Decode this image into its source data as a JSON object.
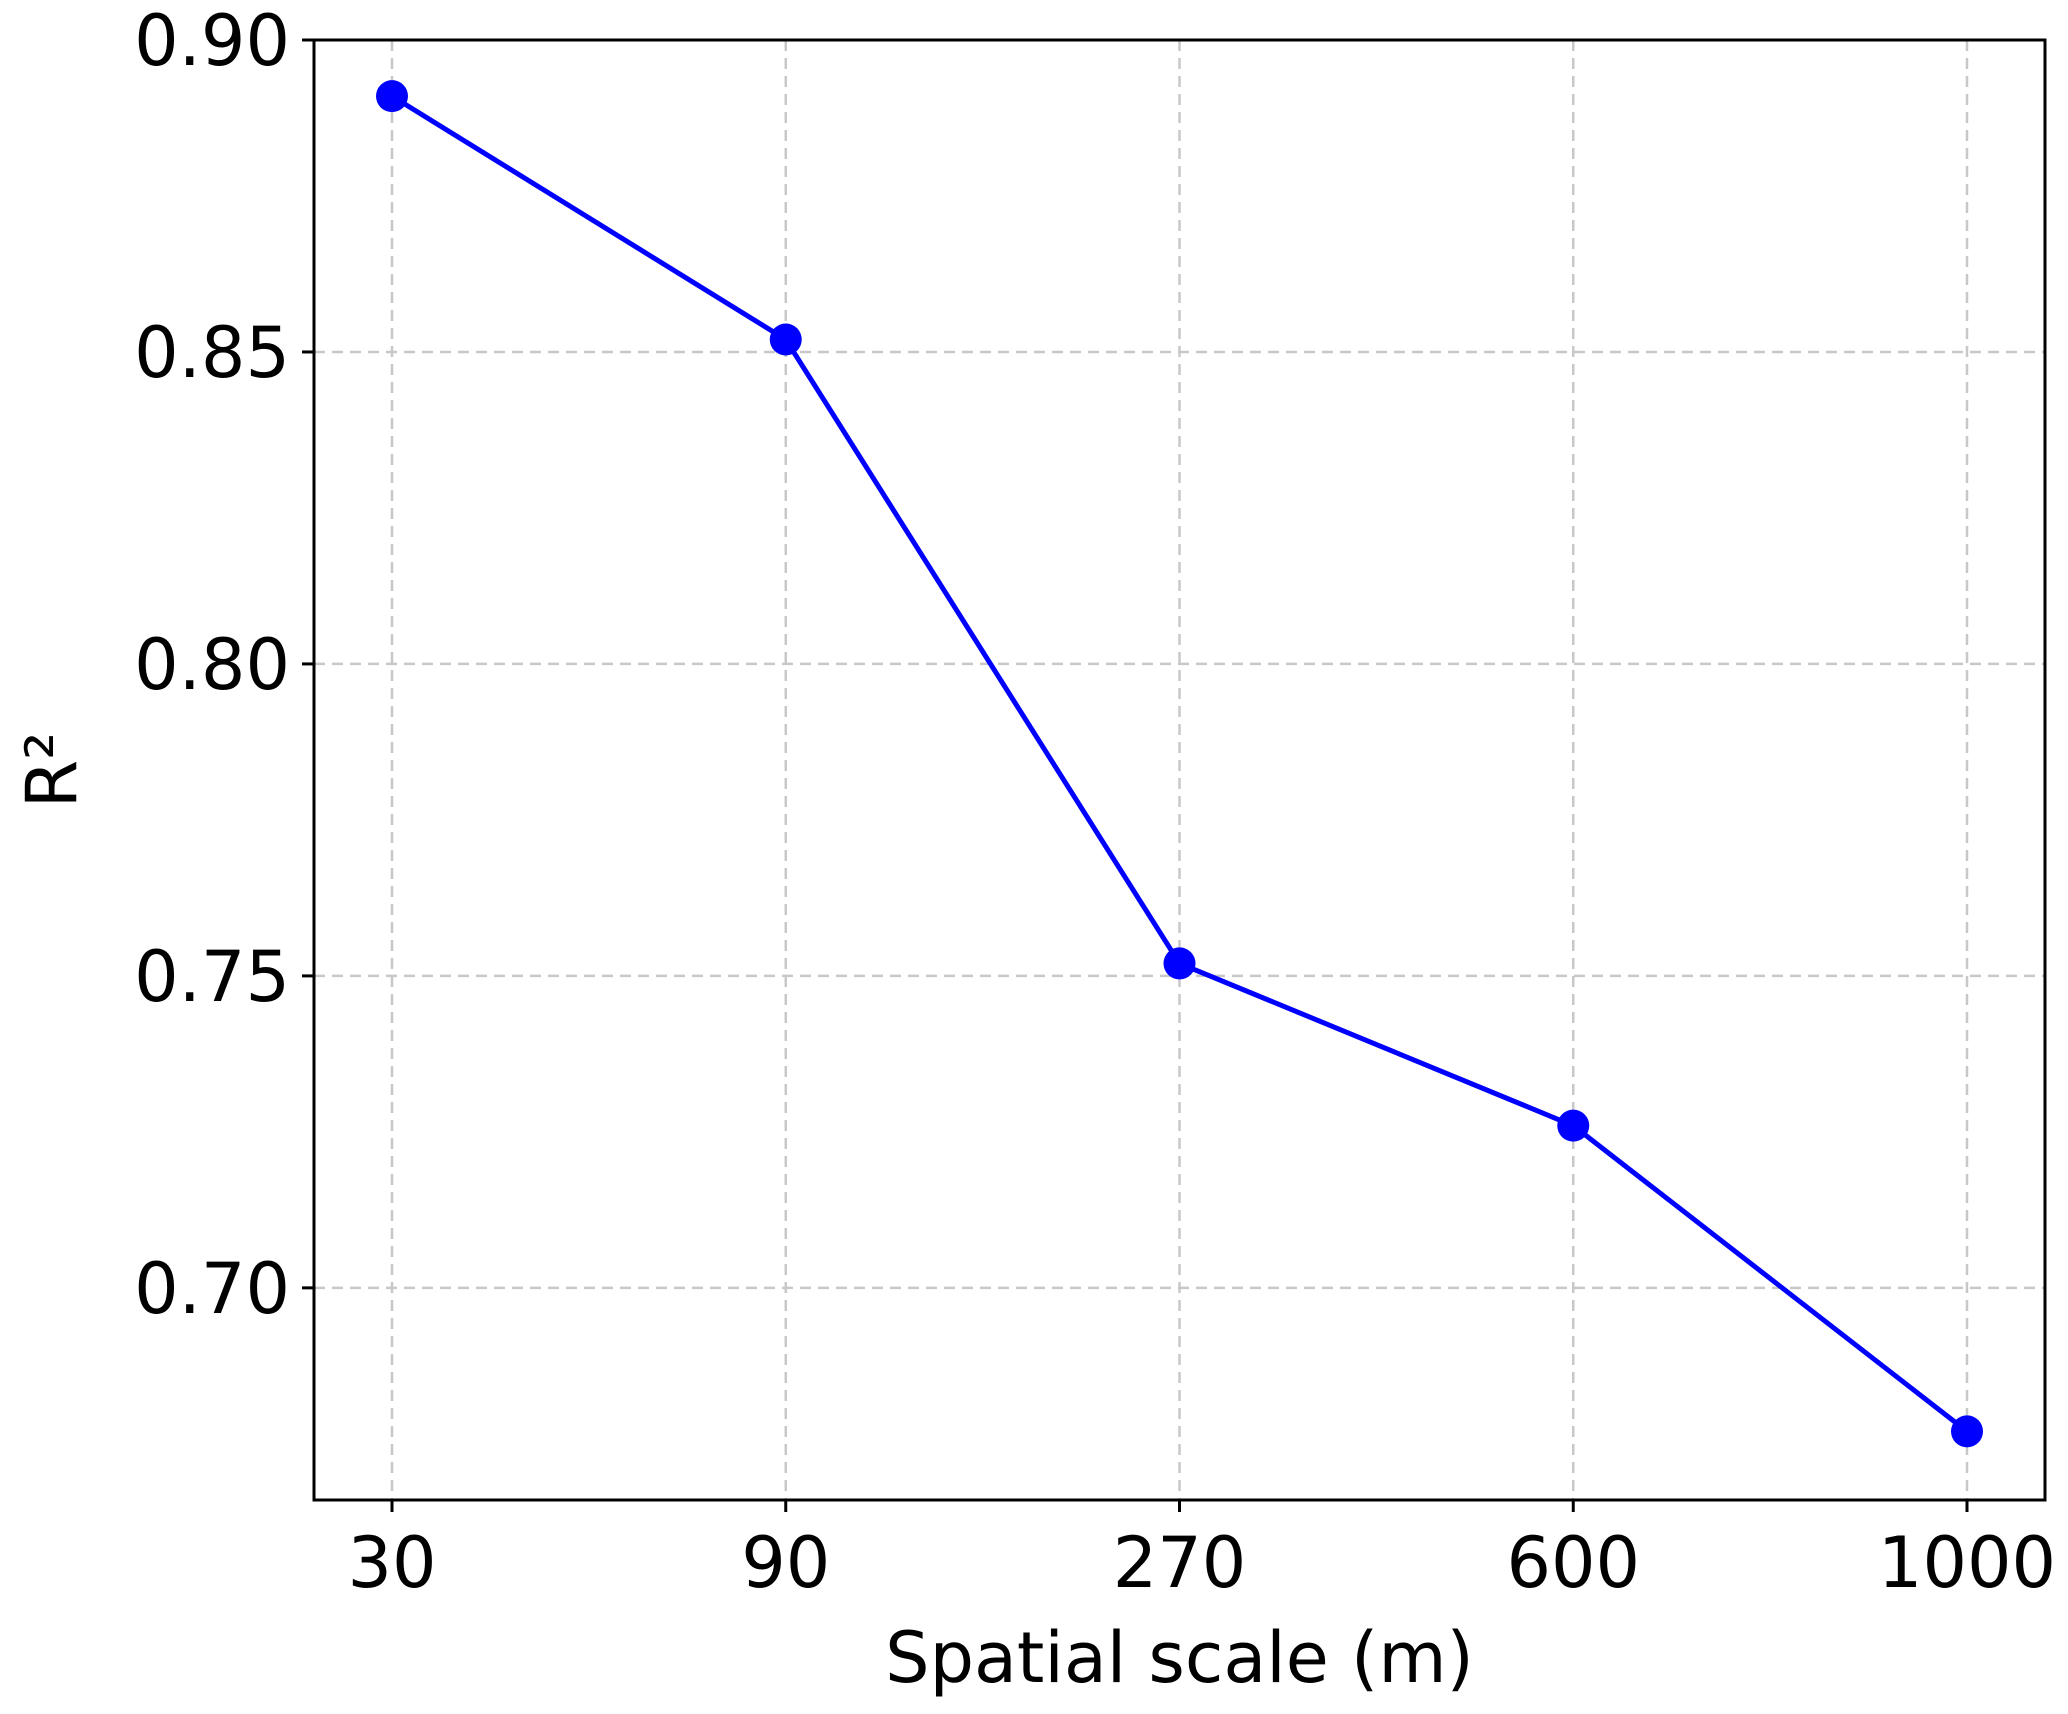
{
  "chart_data": {
    "type": "line",
    "title": "",
    "xlabel": "Spatial scale (m)",
    "ylabel": "R²",
    "categories": [
      "30",
      "90",
      "270",
      "600",
      "1000"
    ],
    "series": [
      {
        "values": [
          0.891,
          0.852,
          0.752,
          0.726,
          0.677
        ],
        "color": "#0000ff",
        "marker": "circle"
      }
    ],
    "yticks": [
      0.7,
      0.75,
      0.8,
      0.85,
      0.9
    ],
    "ytick_labels": [
      "0.70",
      "0.75",
      "0.80",
      "0.85",
      "0.90"
    ],
    "ylim": [
      0.666,
      0.9
    ],
    "grid": true,
    "legend": "none"
  }
}
